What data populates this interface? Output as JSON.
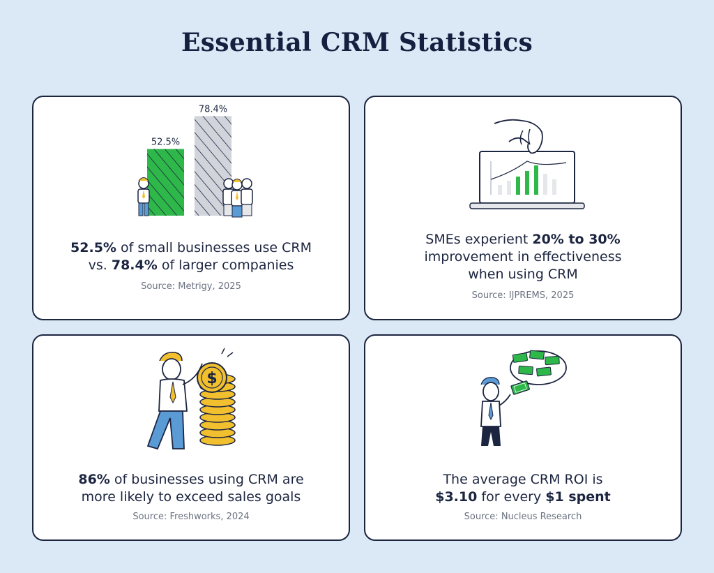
{
  "title": "Essential CRM Statistics",
  "colors": {
    "background": "#dbe8f6",
    "navy": "#1c2540",
    "green": "#2eb84a",
    "gold": "#f2c02e",
    "blue": "#5b9bd5"
  },
  "cards": [
    {
      "illustration": "bar-chart-people",
      "chart_data": {
        "type": "bar",
        "categories": [
          "small businesses",
          "larger companies"
        ],
        "values": [
          52.5,
          78.4
        ],
        "labels": [
          "52.5%",
          "78.4%"
        ],
        "ylim": [
          0,
          100
        ]
      },
      "stat_lines": [
        {
          "bold": "52.5%",
          "rest": " of small businesses use CRM"
        },
        {
          "pre": "vs. ",
          "bold": "78.4%",
          "rest": " of larger companies"
        }
      ],
      "source": "Source: Metrigy, 2025"
    },
    {
      "illustration": "laptop-chart-hand",
      "stat_lines": [
        {
          "pre": "SMEs experient ",
          "bold": "20% to 30%"
        },
        {
          "pre": "improvement in effectiveness"
        },
        {
          "pre": "when using CRM"
        }
      ],
      "source": "Source: IJPREMS, 2025"
    },
    {
      "illustration": "man-coin-stack",
      "stat_lines": [
        {
          "bold": "86%",
          "rest": " of businesses using CRM are"
        },
        {
          "pre": "more likely to exceed sales goals"
        }
      ],
      "source": "Source: Freshworks, 2024"
    },
    {
      "illustration": "man-money-thought",
      "stat_lines": [
        {
          "pre": "The average CRM ROI is"
        },
        {
          "bold": "$3.10",
          "rest": " for every ",
          "bold2": "$1 spent"
        }
      ],
      "source": "Source: Nucleus Research"
    }
  ]
}
